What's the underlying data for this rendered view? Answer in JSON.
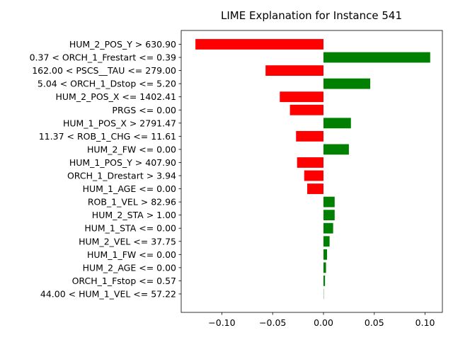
{
  "chart_data": {
    "type": "bar",
    "orientation": "horizontal",
    "title": "LIME Explanation for Instance 541",
    "xlabel": "",
    "ylabel": "",
    "xlim": [
      -0.14,
      0.117
    ],
    "xticks": [
      -0.1,
      -0.05,
      0.0,
      0.05,
      0.1
    ],
    "xtick_labels": [
      "−0.10",
      "−0.05",
      "0.00",
      "0.05",
      "0.10"
    ],
    "grid": false,
    "positive_color": "#008000",
    "negative_color": "#ff0000",
    "categories": [
      "HUM_2_POS_Y > 630.90",
      "0.37 < ORCH_1_Frestart <= 0.39",
      "162.00 < PSCS__TAU <= 279.00",
      "5.04 < ORCH_1_Dstop <= 5.20",
      "HUM_2_POS_X <= 1402.41",
      "PRGS <= 0.00",
      "HUM_1_POS_X > 2791.47",
      "11.37 < ROB_1_CHG <= 11.61",
      "HUM_2_FW <= 0.00",
      "HUM_1_POS_Y > 407.90",
      "ORCH_1_Drestart > 3.94",
      "HUM_1_AGE <= 0.00",
      "ROB_1_VEL > 82.96",
      "HUM_2_STA > 1.00",
      "HUM_1_STA <= 0.00",
      "HUM_2_VEL <= 37.75",
      "HUM_1_FW <= 0.00",
      "HUM_2_AGE <= 0.00",
      "ORCH_1_Fstop <= 0.57",
      "44.00 < HUM_1_VEL <= 57.22"
    ],
    "values": [
      -0.126,
      0.105,
      -0.057,
      0.046,
      -0.043,
      -0.033,
      0.027,
      -0.027,
      0.025,
      -0.026,
      -0.019,
      -0.016,
      0.011,
      0.011,
      0.0095,
      0.006,
      0.0035,
      0.0025,
      0.0015,
      0.0001
    ]
  }
}
